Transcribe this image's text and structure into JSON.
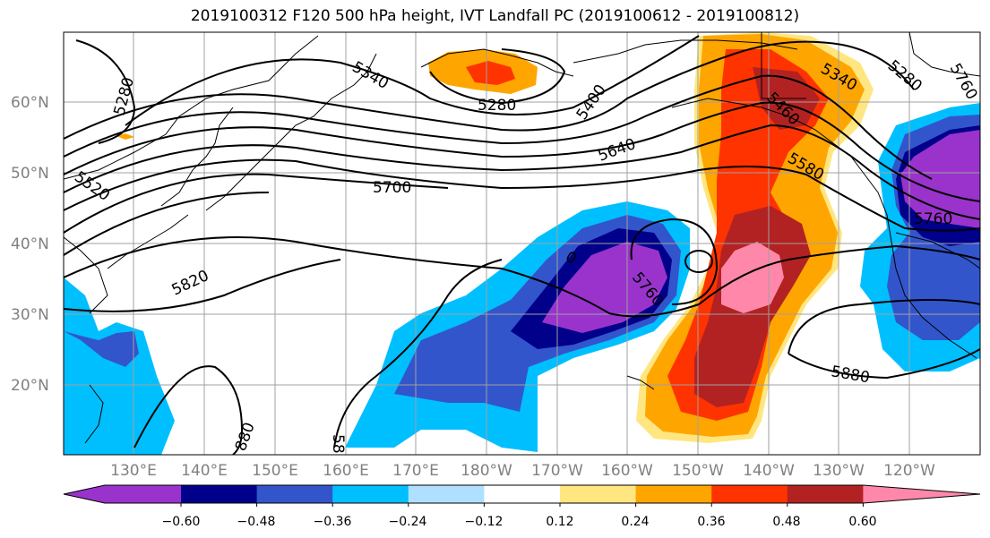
{
  "title": "2019100312 F120 500 hPa height, IVT Landfall PC (2019100612 - 2019100812)",
  "lat_labels": [
    "60°N",
    "50°N",
    "40°N",
    "30°N",
    "20°N"
  ],
  "lon_labels": [
    "130°E",
    "140°E",
    "150°E",
    "160°E",
    "170°E",
    "180°W",
    "170°W",
    "160°W",
    "150°W",
    "140°W",
    "130°W",
    "120°W"
  ],
  "contour_labels": [
    "5280",
    "5340",
    "5280",
    "5400",
    "5340",
    "5280",
    "5460",
    "5580",
    "5640",
    "5520",
    "5700",
    "5760",
    "5820",
    "5760",
    "5880",
    "880",
    "58",
    "5760",
    "0"
  ],
  "colorbar": {
    "ticks": [
      "−0.60",
      "−0.48",
      "−0.36",
      "−0.24",
      "−0.12",
      "0.12",
      "0.24",
      "0.36",
      "0.48",
      "0.60"
    ],
    "colors": [
      "#9933cc",
      "#00008b",
      "#3355cc",
      "#00bfff",
      "#b0e0ff",
      "#ffffff",
      "#ffe680",
      "#ffa500",
      "#ff3300",
      "#b22222",
      "#ff88aa"
    ]
  }
}
